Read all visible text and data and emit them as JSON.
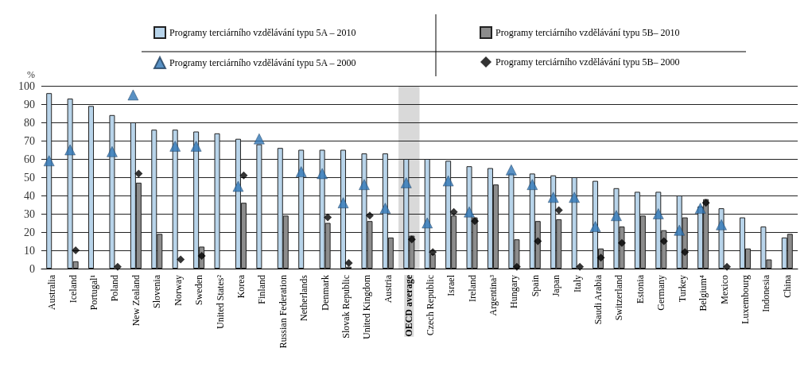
{
  "chart_data": {
    "type": "bar",
    "ylabel": "%",
    "categories": [
      "Australia",
      "Iceland",
      "Portugal¹",
      "Poland",
      "New Zealand",
      "Slovenia",
      "Norway",
      "Sweden",
      "United States²",
      "Korea",
      "Finland",
      "Russian Federation",
      "Netherlands",
      "Denmark",
      "Slovak Republic",
      "United Kingdom",
      "Austria",
      "OECD average",
      "Czech Republic",
      "Israel",
      "Ireland",
      "Argentina³",
      "Hungary",
      "Spain",
      "Japan",
      "Italy",
      "Saudi Arabia",
      "Switzerland",
      "Estonia",
      "Germany",
      "Turkey",
      "Belgium⁴",
      "Mexico",
      "Luxembourg",
      "Indonesia",
      "China"
    ],
    "series": [
      {
        "name": "Programy terciárního vzdělávání typu 5A – 2010",
        "color": "#b8d4ea",
        "values": [
          96,
          93,
          89,
          84,
          80,
          76,
          76,
          75,
          74,
          71,
          68,
          66,
          65,
          65,
          65,
          63,
          63,
          60,
          60,
          59,
          56,
          55,
          52,
          52,
          51,
          50,
          48,
          44,
          42,
          42,
          40,
          34,
          33,
          28,
          23,
          17
        ]
      },
      {
        "name": "Programy terciárního vzdělávání typu 5B– 2010",
        "color": "#8c8c8c",
        "values": [
          null,
          4,
          null,
          null,
          47,
          19,
          null,
          12,
          null,
          36,
          null,
          29,
          null,
          25,
          1,
          26,
          17,
          18,
          8,
          29,
          28,
          46,
          16,
          26,
          27,
          null,
          11,
          23,
          29,
          21,
          28,
          38,
          null,
          11,
          5,
          19
        ]
      },
      {
        "name": "Programy terciárního vzdělávání typu 5A – 2000",
        "type": "scatter",
        "marker": "triangle",
        "color": "#2f75b5",
        "values": [
          59,
          65,
          null,
          64,
          95,
          null,
          67,
          67,
          null,
          45,
          71,
          null,
          53,
          52,
          36,
          46,
          33,
          47,
          25,
          48,
          31,
          null,
          54,
          46,
          39,
          39,
          23,
          29,
          null,
          30,
          21,
          33,
          24,
          null,
          null,
          null
        ]
      },
      {
        "name": "Programy terciárního vzdělávání typu 5B– 2000",
        "type": "scatter",
        "marker": "diamond",
        "color": "#000000",
        "values": [
          null,
          10,
          null,
          1,
          52,
          null,
          5,
          7,
          null,
          51,
          null,
          null,
          null,
          28,
          3,
          29,
          null,
          16,
          9,
          31,
          26,
          null,
          1,
          15,
          32,
          1,
          6,
          14,
          null,
          15,
          9,
          36,
          1,
          null,
          null,
          null
        ]
      }
    ],
    "ylim": [
      0,
      100
    ],
    "yticks": [
      0,
      10,
      20,
      30,
      40,
      50,
      60,
      70,
      80,
      90,
      100
    ],
    "grid": "y",
    "legend": "top",
    "bands": [
      {
        "axis": "x",
        "from": "OECD average",
        "to": "OECD average",
        "color": "#d9d9d9"
      }
    ]
  }
}
